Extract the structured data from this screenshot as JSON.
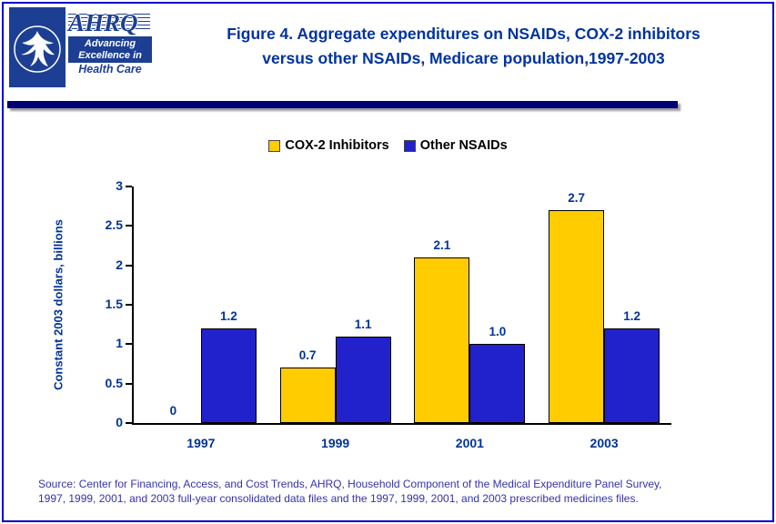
{
  "header": {
    "title_line1": "Figure 4. Aggregate expenditures on NSAIDs, COX-2 inhibitors",
    "title_line2": "versus other NSAIDs, Medicare population,1997-2003",
    "logo": {
      "ahrq_text": "AHRQ",
      "tagline_line1": "Advancing",
      "tagline_line2": "Excellence in",
      "tagline_line3": "Health Care"
    }
  },
  "chart_data": {
    "type": "bar",
    "title": "Figure 4. Aggregate expenditures on NSAIDs, COX-2 inhibitors versus other NSAIDs, Medicare population,1997-2003",
    "categories": [
      "1997",
      "1999",
      "2001",
      "2003"
    ],
    "series": [
      {
        "name": "COX-2 Inhibitors",
        "color": "#FFCC00",
        "values": [
          0,
          0.7,
          2.1,
          2.7
        ],
        "labels": [
          "0",
          "0.7",
          "2.1",
          "2.7"
        ]
      },
      {
        "name": "Other NSAIDs",
        "color": "#2222CC",
        "values": [
          1.2,
          1.1,
          1.0,
          1.2
        ],
        "labels": [
          "1.2",
          "1.1",
          "1.0",
          "1.2"
        ]
      }
    ],
    "xlabel": "",
    "ylabel": "Constant 2003 dollars, billions",
    "ylim": [
      0,
      3
    ],
    "yticks": [
      0,
      0.5,
      1,
      1.5,
      2,
      2.5,
      3
    ],
    "ytick_labels": [
      "0",
      "0.5",
      "1",
      "1.5",
      "2",
      "2.5",
      "3"
    ],
    "legend_position": "top",
    "grid": false
  },
  "footer": {
    "source_line1": "Source: Center for Financing, Access, and Cost Trends, AHRQ, Household Component of the Medical Expenditure Panel Survey,",
    "source_line2": "1997, 1999, 2001, and 2003 full-year consolidated data files and the 1997, 1999, 2001, and 2003 prescribed medicines files."
  },
  "colors": {
    "frame": "#0000CC",
    "title_navy": "#0033A0",
    "divider": "#000077",
    "axis_text": "#003399",
    "footer_text": "#3333AA"
  }
}
